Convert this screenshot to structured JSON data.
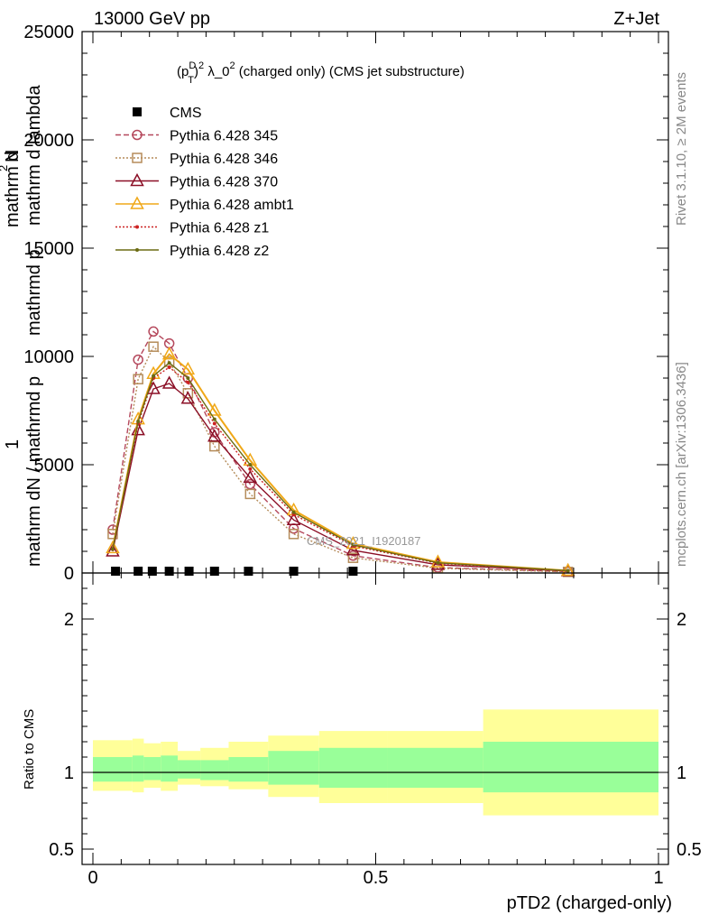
{
  "header": {
    "left": "13000 GeV pp",
    "right": "Z+Jet"
  },
  "side_labels": {
    "rivet": "Rivet 3.1.10, ≥ 2M events",
    "mcplots": "mcplots.cern.ch [arXiv:1306.3436]"
  },
  "watermark": "CMS_2021_I1920187",
  "chart_data": [
    {
      "type": "line",
      "title_base": "(p",
      "title_sup1": "D",
      "title_sub1": "T",
      "title_mid": ")",
      "title_sup2": "2",
      "title_rest": " λ_0",
      "title_sup3": "2",
      "title_tail": " (charged only) (CMS jet substructure)",
      "ylabel_parts": [
        "1",
        "mathrm dN / mathrmd p",
        "T",
        "mathrmd p",
        "T",
        " mathrm d lambda",
        "mathrm d",
        "2",
        "N"
      ],
      "xlim": [
        -0.02,
        1.02
      ],
      "ylim": [
        0,
        25000
      ],
      "yticks": [
        0,
        5000,
        10000,
        15000,
        20000,
        25000
      ],
      "ytick_labels": [
        "0",
        "5000",
        "10000",
        "15000",
        "20000",
        "25000"
      ],
      "legend_position": "top-left",
      "series": [
        {
          "name": "CMS",
          "color": "#000000",
          "marker": "square",
          "dash": "",
          "x": [
            0.04,
            0.08,
            0.105,
            0.135,
            0.17,
            0.215,
            0.275,
            0.355,
            0.46
          ],
          "y": [
            0,
            0,
            0,
            0,
            0,
            0,
            0,
            0,
            0
          ]
        },
        {
          "name": "Pythia 6.428 345",
          "color": "#b5485c",
          "marker": "circle",
          "dash": "6,3",
          "x": [
            0.035,
            0.08,
            0.107,
            0.135,
            0.168,
            0.215,
            0.278,
            0.355,
            0.46,
            0.61,
            0.84
          ],
          "y": [
            2000,
            9850,
            11150,
            10600,
            9000,
            6500,
            4100,
            2050,
            800,
            250,
            60
          ]
        },
        {
          "name": "Pythia 6.428 346",
          "color": "#b58c5a",
          "marker": "square-open",
          "dash": "2,2",
          "x": [
            0.035,
            0.08,
            0.107,
            0.135,
            0.168,
            0.215,
            0.278,
            0.355,
            0.46,
            0.61,
            0.84
          ],
          "y": [
            1800,
            8950,
            10450,
            9750,
            8300,
            5850,
            3650,
            1800,
            700,
            220,
            50
          ]
        },
        {
          "name": "Pythia 6.428 370",
          "color": "#8b0f26",
          "marker": "triangle",
          "dash": "",
          "x": [
            0.035,
            0.08,
            0.107,
            0.135,
            0.168,
            0.215,
            0.278,
            0.355,
            0.46,
            0.61,
            0.84
          ],
          "y": [
            1000,
            6600,
            8500,
            8750,
            8050,
            6300,
            4400,
            2450,
            1050,
            380,
            90
          ]
        },
        {
          "name": "Pythia 6.428 ambt1",
          "color": "#f0a818",
          "marker": "triangle-open",
          "dash": "",
          "x": [
            0.035,
            0.08,
            0.107,
            0.135,
            0.168,
            0.215,
            0.278,
            0.355,
            0.46,
            0.61,
            0.84
          ],
          "y": [
            1150,
            7100,
            9200,
            10100,
            9400,
            7500,
            5200,
            2900,
            1350,
            500,
            110
          ]
        },
        {
          "name": "Pythia 6.428 z1",
          "color": "#cc2222",
          "marker": "dot",
          "dash": "2,2",
          "x": [
            0.035,
            0.08,
            0.107,
            0.135,
            0.168,
            0.215,
            0.278,
            0.355,
            0.46,
            0.61,
            0.84
          ],
          "y": [
            1100,
            6900,
            9000,
            9500,
            8800,
            6900,
            4800,
            2700,
            1250,
            450,
            100
          ]
        },
        {
          "name": "Pythia 6.428 z2",
          "color": "#6b6b12",
          "marker": "dot",
          "dash": "",
          "x": [
            0.035,
            0.08,
            0.107,
            0.135,
            0.168,
            0.215,
            0.278,
            0.355,
            0.46,
            0.61,
            0.84
          ],
          "y": [
            1100,
            7000,
            9100,
            9700,
            9000,
            7100,
            5000,
            2800,
            1300,
            470,
            105
          ]
        }
      ]
    },
    {
      "type": "area",
      "ylabel": "Ratio to CMS",
      "xlabel": "pTD2 (charged-only)",
      "xlim": [
        -0.02,
        1.02
      ],
      "ylim": [
        0.4,
        2.3
      ],
      "yticks": [
        0.5,
        1,
        2
      ],
      "ytick_labels": [
        "0.5",
        "1",
        "2"
      ],
      "xticks": [
        0,
        0.5,
        1
      ],
      "xtick_labels": [
        "0",
        "0.5",
        "1"
      ],
      "bin_edges": [
        0.0,
        0.07,
        0.09,
        0.12,
        0.15,
        0.19,
        0.24,
        0.31,
        0.4,
        0.52,
        0.69,
        1.0
      ],
      "band_outer_hi": [
        1.21,
        1.22,
        1.19,
        1.2,
        1.14,
        1.16,
        1.2,
        1.24,
        1.27,
        1.27,
        1.41
      ],
      "band_outer_lo": [
        0.88,
        0.87,
        0.9,
        0.88,
        0.92,
        0.91,
        0.89,
        0.84,
        0.8,
        0.8,
        0.72
      ],
      "band_inner_hi": [
        1.1,
        1.11,
        1.1,
        1.11,
        1.08,
        1.08,
        1.1,
        1.14,
        1.16,
        1.16,
        1.2
      ],
      "band_inner_lo": [
        0.94,
        0.94,
        0.95,
        0.94,
        0.96,
        0.95,
        0.94,
        0.92,
        0.9,
        0.9,
        0.87
      ]
    }
  ]
}
